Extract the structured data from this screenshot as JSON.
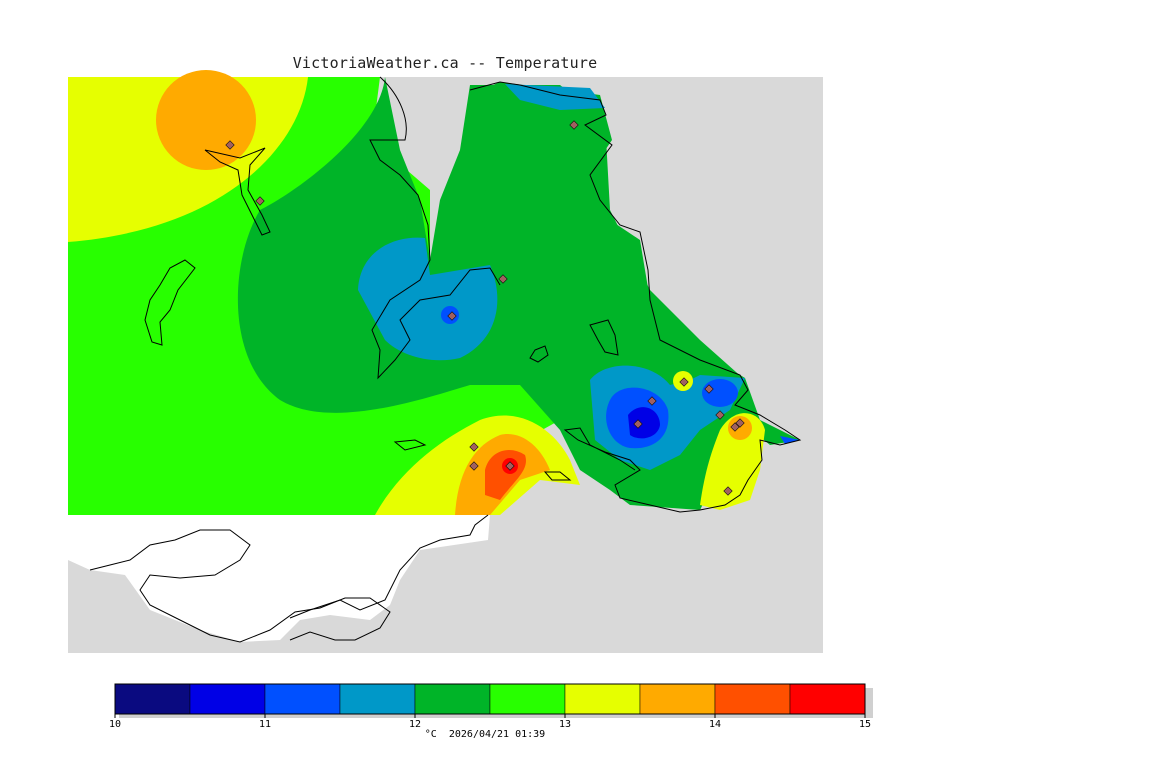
{
  "title": "VictoriaWeather.ca -- Temperature",
  "footer": {
    "unit": "°C",
    "timestamp": "2026/04/21 01:39"
  },
  "colorbar": {
    "min": 10,
    "max": 15,
    "step": 0.5,
    "tick_labels": [
      "10",
      "11",
      "12",
      "13",
      "14",
      "15"
    ],
    "colors": [
      "#0a0a80",
      "#0000e6",
      "#0050ff",
      "#0098c8",
      "#00b428",
      "#28ff00",
      "#e6ff00",
      "#ffaa00",
      "#ff5000",
      "#ff0000"
    ]
  },
  "colors": {
    "land_background": "#d9d9d9",
    "outside_area": "#ffffff",
    "coastline": "#000000",
    "station_marker": "#a06060"
  }
}
